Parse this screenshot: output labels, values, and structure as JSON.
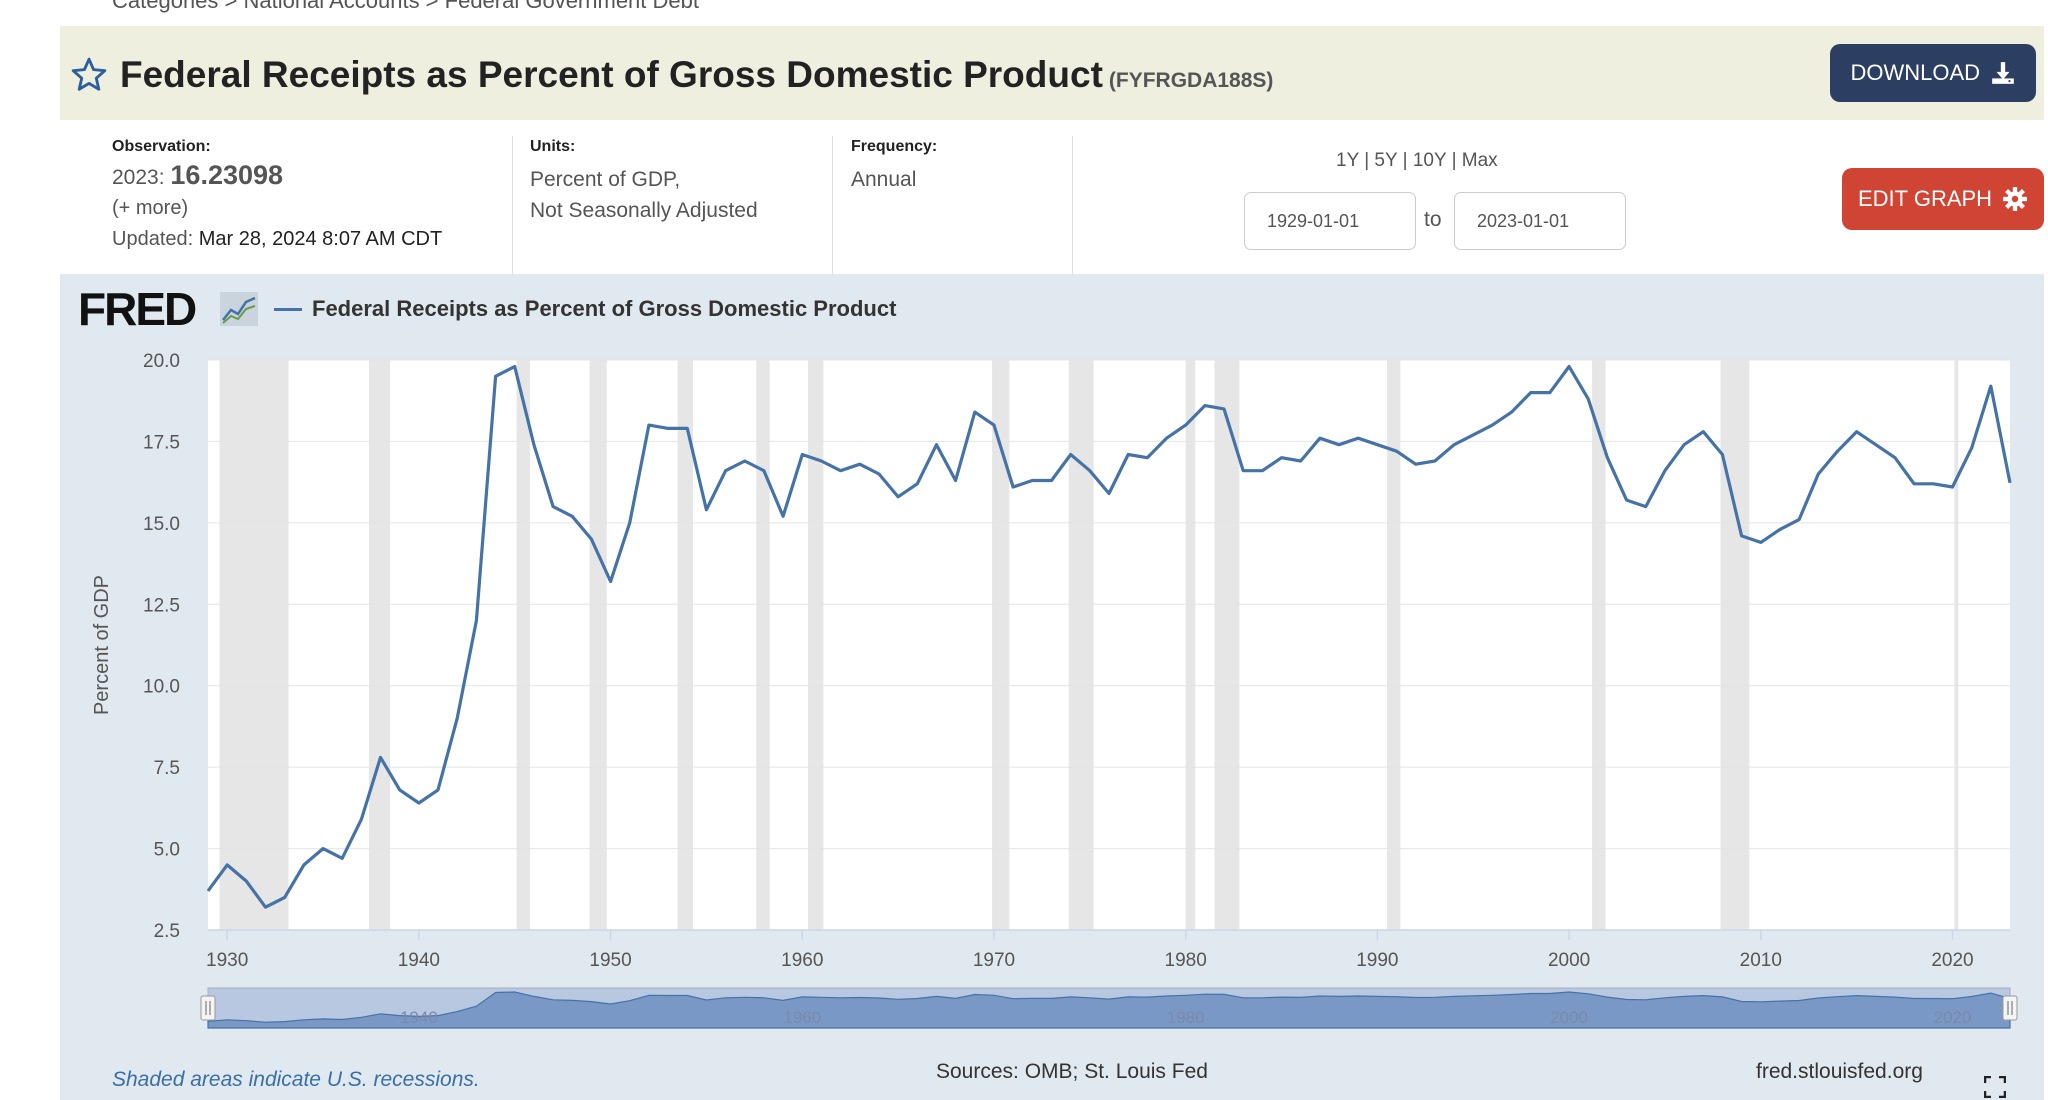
{
  "breadcrumb": "Categories > National Accounts > Federal Government Debt",
  "header": {
    "title": "Federal Receipts as Percent of Gross Domestic Product",
    "series_id": "(FYFRGDA188S)",
    "download_label": "DOWNLOAD"
  },
  "meta": {
    "observation_label": "Observation:",
    "observation_date": "2023:",
    "observation_value": "16.23098",
    "more": "(+ more)",
    "updated_label": "Updated:",
    "updated_value": "Mar 28, 2024 8:07 AM CDT",
    "units_label": "Units:",
    "units_line1": "Percent of GDP,",
    "units_line2": "Not Seasonally Adjusted",
    "frequency_label": "Frequency:",
    "frequency_value": "Annual"
  },
  "range": {
    "r1": "1Y",
    "r5": "5Y",
    "r10": "10Y",
    "rmax": "Max",
    "sep": "|",
    "start": "1929-01-01",
    "to": "to",
    "end": "2023-01-01",
    "edit_label": "EDIT GRAPH"
  },
  "graph": {
    "logo": "FRED",
    "legend": "Federal Receipts as Percent of Gross Domestic Product",
    "footnote": "Shaded areas indicate U.S. recessions.",
    "sources": "Sources: OMB; St. Louis Fed",
    "site": "fred.stlouisfed.org"
  },
  "colors": {
    "line": "#4572a7",
    "download": "#2c3e62",
    "edit": "#cf4433",
    "recession": "#e6e6e6"
  },
  "chart_data": {
    "type": "line",
    "title": "Federal Receipts as Percent of Gross Domestic Product",
    "ylabel": "Percent of GDP",
    "xlabel": "",
    "ylim": [
      2.5,
      20.0
    ],
    "xlim": [
      1929,
      2023
    ],
    "yticks": [
      "20.0",
      "17.5",
      "15.0",
      "12.5",
      "10.0",
      "7.5",
      "5.0",
      "2.5"
    ],
    "xticks": [
      "1930",
      "1940",
      "1950",
      "1960",
      "1970",
      "1980",
      "1990",
      "2000",
      "2010",
      "2020"
    ],
    "navigator_labels": [
      "1940",
      "1960",
      "1980",
      "2000",
      "2020"
    ],
    "recessions": [
      [
        1929.6,
        1933.2
      ],
      [
        1937.4,
        1938.5
      ],
      [
        1945.1,
        1945.8
      ],
      [
        1948.9,
        1949.8
      ],
      [
        1953.5,
        1954.3
      ],
      [
        1957.6,
        1958.3
      ],
      [
        1960.3,
        1961.1
      ],
      [
        1969.9,
        1970.8
      ],
      [
        1973.9,
        1975.2
      ],
      [
        1980.0,
        1980.5
      ],
      [
        1981.5,
        1982.8
      ],
      [
        1990.5,
        1991.2
      ],
      [
        2001.2,
        2001.9
      ],
      [
        2007.9,
        2009.4
      ],
      [
        2020.1,
        2020.3
      ]
    ],
    "series": [
      {
        "name": "Federal Receipts as Percent of Gross Domestic Product",
        "x": [
          1929,
          1930,
          1931,
          1932,
          1933,
          1934,
          1935,
          1936,
          1937,
          1938,
          1939,
          1940,
          1941,
          1942,
          1943,
          1944,
          1945,
          1946,
          1947,
          1948,
          1949,
          1950,
          1951,
          1952,
          1953,
          1954,
          1955,
          1956,
          1957,
          1958,
          1959,
          1960,
          1961,
          1962,
          1963,
          1964,
          1965,
          1966,
          1967,
          1968,
          1969,
          1970,
          1971,
          1972,
          1973,
          1974,
          1975,
          1976,
          1977,
          1978,
          1979,
          1980,
          1981,
          1982,
          1983,
          1984,
          1985,
          1986,
          1987,
          1988,
          1989,
          1990,
          1991,
          1992,
          1993,
          1994,
          1995,
          1996,
          1997,
          1998,
          1999,
          2000,
          2001,
          2002,
          2003,
          2004,
          2005,
          2006,
          2007,
          2008,
          2009,
          2010,
          2011,
          2012,
          2013,
          2014,
          2015,
          2016,
          2017,
          2018,
          2019,
          2020,
          2021,
          2022,
          2023
        ],
        "values": [
          3.7,
          4.5,
          4.0,
          3.2,
          3.5,
          4.5,
          5.0,
          4.7,
          5.9,
          7.8,
          6.8,
          6.4,
          6.8,
          9.0,
          12.0,
          19.5,
          19.8,
          17.4,
          15.5,
          15.2,
          14.5,
          13.2,
          15.0,
          18.0,
          17.9,
          17.9,
          15.4,
          16.6,
          16.9,
          16.6,
          15.2,
          17.1,
          16.9,
          16.6,
          16.8,
          16.5,
          15.8,
          16.2,
          17.4,
          16.3,
          18.4,
          18.0,
          16.1,
          16.3,
          16.3,
          17.1,
          16.6,
          15.9,
          17.1,
          17.0,
          17.6,
          18.0,
          18.6,
          18.5,
          16.6,
          16.6,
          17.0,
          16.9,
          17.6,
          17.4,
          17.6,
          17.4,
          17.2,
          16.8,
          16.9,
          17.4,
          17.7,
          18.0,
          18.4,
          19.0,
          19.0,
          19.8,
          18.8,
          17.0,
          15.7,
          15.5,
          16.6,
          17.4,
          17.8,
          17.1,
          14.6,
          14.4,
          14.8,
          15.1,
          16.5,
          17.2,
          17.8,
          17.4,
          17.0,
          16.2,
          16.2,
          16.1,
          17.3,
          19.2,
          16.23
        ]
      }
    ]
  }
}
